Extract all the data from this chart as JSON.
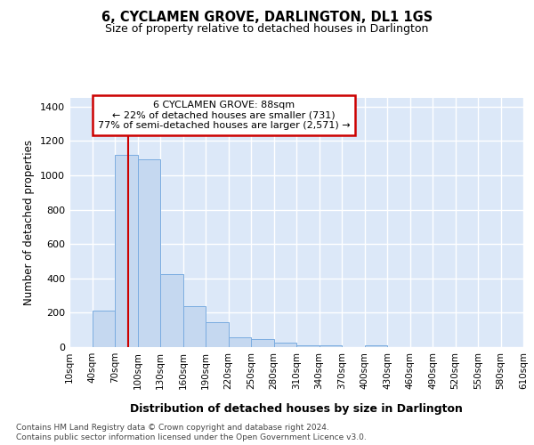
{
  "title": "6, CYCLAMEN GROVE, DARLINGTON, DL1 1GS",
  "subtitle": "Size of property relative to detached houses in Darlington",
  "xlabel": "Distribution of detached houses by size in Darlington",
  "ylabel": "Number of detached properties",
  "footer_line1": "Contains HM Land Registry data © Crown copyright and database right 2024.",
  "footer_line2": "Contains public sector information licensed under the Open Government Licence v3.0.",
  "bin_edges": [
    10,
    40,
    70,
    100,
    130,
    160,
    190,
    220,
    250,
    280,
    310,
    340,
    370,
    400,
    430,
    460,
    490,
    520,
    550,
    580,
    610
  ],
  "bar_heights": [
    0,
    210,
    1120,
    1095,
    425,
    240,
    143,
    58,
    45,
    25,
    12,
    12,
    0,
    12,
    0,
    0,
    0,
    0,
    0,
    0
  ],
  "bar_color": "#c5d8f0",
  "bar_edge_color": "#7aace0",
  "background_color": "#dce8f8",
  "grid_color": "#ffffff",
  "property_size": 88,
  "annotation_line1": "6 CYCLAMEN GROVE: 88sqm",
  "annotation_line2": "← 22% of detached houses are smaller (731)",
  "annotation_line3": "77% of semi-detached houses are larger (2,571) →",
  "annotation_box_color": "#cc0000",
  "vline_color": "#cc0000",
  "ylim": [
    0,
    1450
  ],
  "yticks": [
    0,
    200,
    400,
    600,
    800,
    1000,
    1200,
    1400
  ],
  "tick_labels": [
    "10sqm",
    "40sqm",
    "70sqm",
    "100sqm",
    "130sqm",
    "160sqm",
    "190sqm",
    "220sqm",
    "250sqm",
    "280sqm",
    "310sqm",
    "340sqm",
    "370sqm",
    "400sqm",
    "430sqm",
    "460sqm",
    "490sqm",
    "520sqm",
    "550sqm",
    "580sqm",
    "610sqm"
  ]
}
